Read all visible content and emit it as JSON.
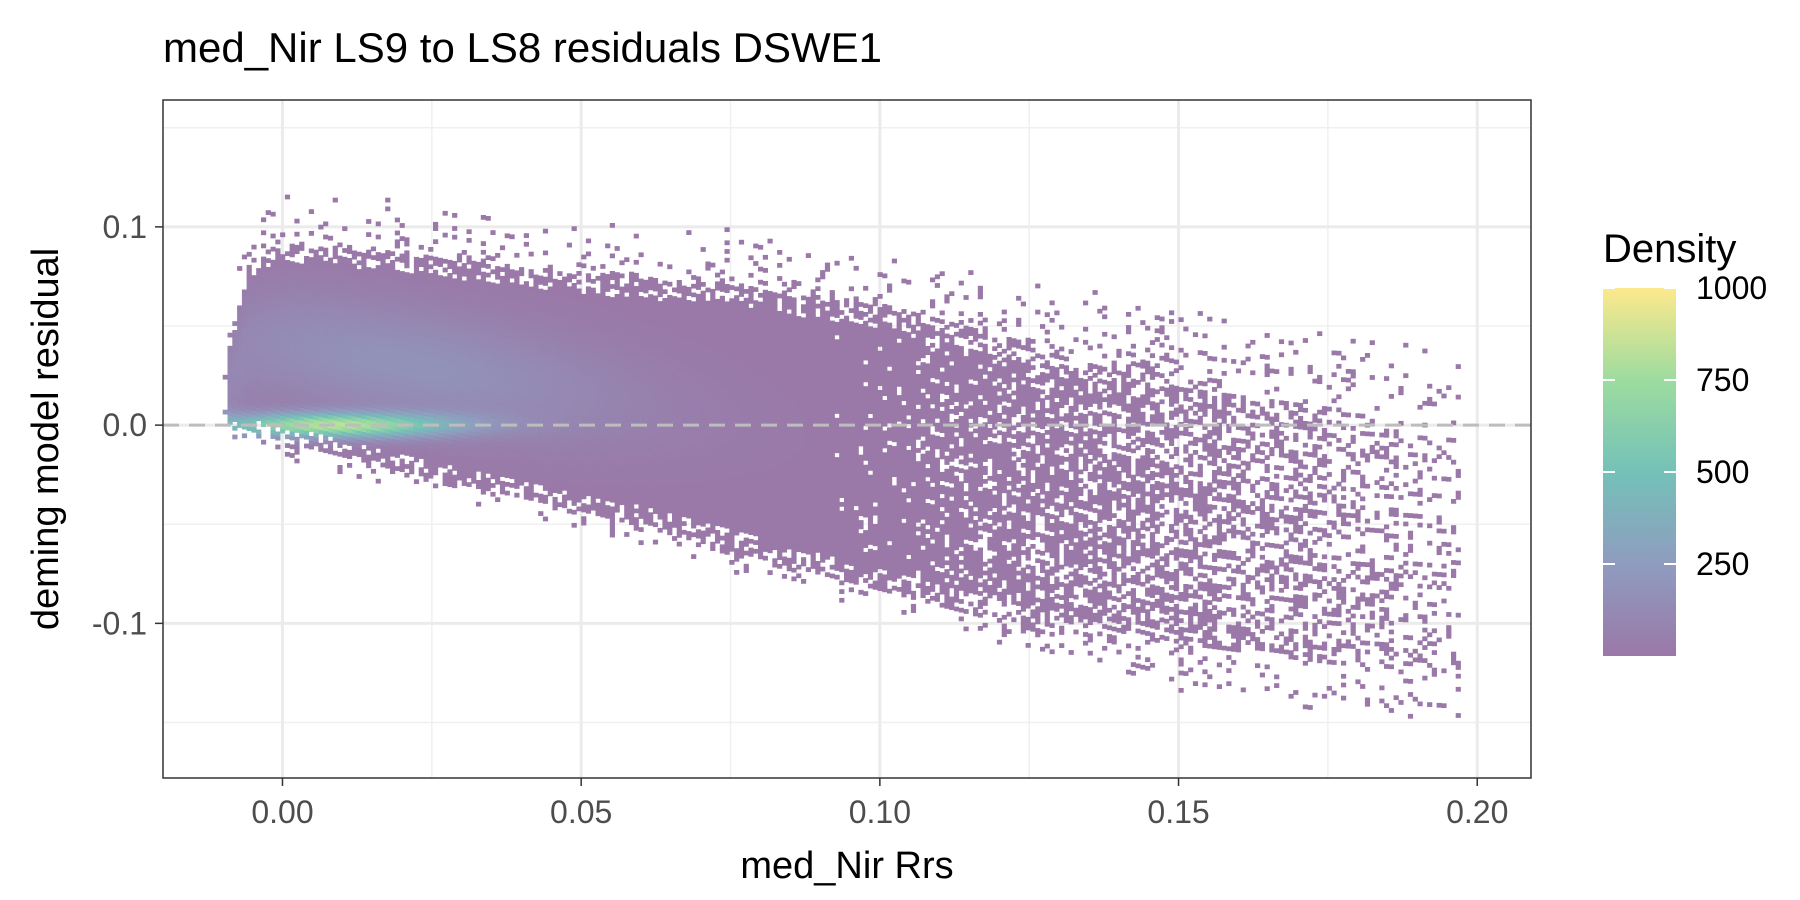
{
  "chart_data": {
    "type": "heatmap",
    "title": "med_Nir LS9 to LS8 residuals DSWE1",
    "xlabel": "med_Nir Rrs",
    "ylabel": "deming model residual",
    "xlim": [
      -0.02,
      0.209
    ],
    "ylim": [
      -0.178,
      0.164
    ],
    "x_ticks": [
      0.0,
      0.05,
      0.1,
      0.15,
      0.2
    ],
    "x_tick_labels": [
      "0.00",
      "0.05",
      "0.10",
      "0.15",
      "0.20"
    ],
    "y_ticks": [
      -0.1,
      0.0,
      0.1
    ],
    "y_tick_labels": [
      "-0.1",
      "0.0",
      "0.1"
    ],
    "grid": true,
    "reference_line": {
      "y": 0.0,
      "style": "dashed",
      "color": "#bdbdbd"
    },
    "legend": {
      "title": "Density",
      "position": "right",
      "range": [
        0,
        1000
      ],
      "ticks": [
        250,
        500,
        750,
        1000
      ],
      "tick_labels": [
        "250",
        "500",
        "750",
        "1000"
      ],
      "colors": [
        "#9a78a8",
        "#8f9cbf",
        "#74c1b8",
        "#9ddc9f",
        "#fde98c"
      ]
    },
    "density_shape": {
      "x_min": -0.01,
      "x_max": 0.197,
      "upper_envelope": [
        [
          -0.01,
          0.0
        ],
        [
          -0.009,
          0.045
        ],
        [
          -0.006,
          0.08
        ],
        [
          0.0,
          0.09
        ],
        [
          0.02,
          0.085
        ],
        [
          0.05,
          0.075
        ],
        [
          0.075,
          0.07
        ],
        [
          0.1,
          0.06
        ],
        [
          0.12,
          0.045
        ],
        [
          0.15,
          0.03
        ],
        [
          0.175,
          0.02
        ],
        [
          0.197,
          0.005
        ]
      ],
      "lower_envelope": [
        [
          -0.01,
          0.0
        ],
        [
          0.0,
          -0.01
        ],
        [
          0.02,
          -0.025
        ],
        [
          0.05,
          -0.045
        ],
        [
          0.075,
          -0.065
        ],
        [
          0.1,
          -0.085
        ],
        [
          0.125,
          -0.105
        ],
        [
          0.15,
          -0.125
        ],
        [
          0.175,
          -0.135
        ],
        [
          0.197,
          -0.14
        ]
      ],
      "dense_core": {
        "x": 0.008,
        "y": -0.001,
        "peak_density": 800
      }
    },
    "noise_seed": 11
  }
}
